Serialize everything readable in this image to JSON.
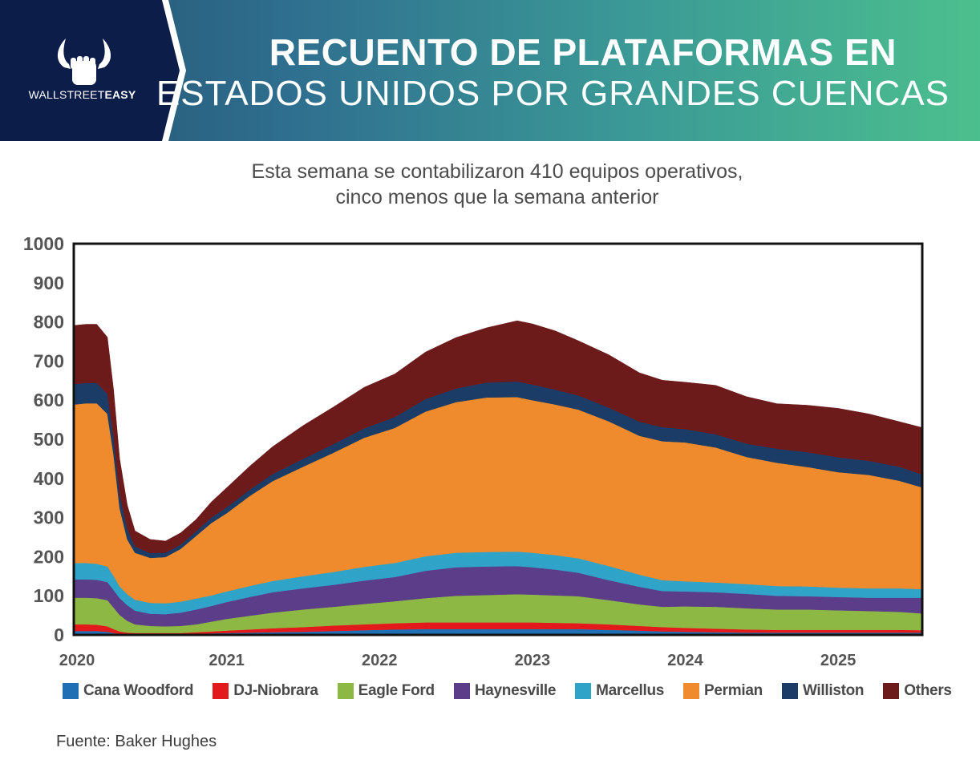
{
  "header": {
    "brand_prefix": "WALLSTREET",
    "brand_suffix": "EASY",
    "title_line1": "RECUENTO DE PLATAFORMAS EN",
    "title_line2": "ESTADOS UNIDOS POR GRANDES CUENCAS",
    "logo_icon": "bull-fist-icon"
  },
  "subtitle_line1": "Esta semana se contabilizaron 410 equipos operativos,",
  "subtitle_line2": "cinco menos que la semana anterior",
  "source": "Fuente: Baker Hughes",
  "chart_data": {
    "type": "area",
    "stacked": true,
    "x": [
      2020.0,
      2020.08,
      2020.15,
      2020.22,
      2020.26,
      2020.3,
      2020.35,
      2020.4,
      2020.5,
      2020.6,
      2020.7,
      2020.8,
      2020.9,
      2021.0,
      2021.15,
      2021.3,
      2021.5,
      2021.7,
      2021.9,
      2022.1,
      2022.3,
      2022.5,
      2022.7,
      2022.9,
      2023.0,
      2023.15,
      2023.3,
      2023.5,
      2023.7,
      2023.85,
      2024.0,
      2024.2,
      2024.4,
      2024.6,
      2024.8,
      2025.0,
      2025.2,
      2025.4,
      2025.55
    ],
    "xlim": [
      2020.0,
      2025.55
    ],
    "xticks": [
      "2020",
      "2021",
      "2022",
      "2023",
      "2024",
      "2025"
    ],
    "ylim": [
      0,
      1000
    ],
    "yticks": [
      "0",
      "100",
      "200",
      "300",
      "400",
      "500",
      "600",
      "700",
      "800",
      "900",
      "1000"
    ],
    "grid": false,
    "legend_position": "bottom",
    "series": [
      {
        "name": "Cana Woodford",
        "color": "#1f6fb4",
        "values": [
          10,
          10,
          10,
          8,
          5,
          3,
          2,
          2,
          2,
          2,
          2,
          3,
          4,
          5,
          6,
          7,
          8,
          10,
          12,
          14,
          15,
          15,
          15,
          15,
          15,
          15,
          15,
          13,
          11,
          9,
          8,
          7,
          6,
          6,
          6,
          6,
          6,
          6,
          6
        ]
      },
      {
        "name": "DJ-Niobrara",
        "color": "#e31a1c",
        "values": [
          17,
          17,
          16,
          14,
          10,
          6,
          4,
          3,
          3,
          3,
          3,
          4,
          5,
          6,
          8,
          10,
          12,
          14,
          15,
          16,
          17,
          17,
          17,
          17,
          17,
          16,
          15,
          14,
          12,
          11,
          10,
          9,
          8,
          7,
          7,
          7,
          7,
          7,
          6
        ]
      },
      {
        "name": "Eagle Ford",
        "color": "#8db843",
        "values": [
          68,
          68,
          68,
          67,
          55,
          42,
          30,
          22,
          18,
          17,
          18,
          20,
          25,
          30,
          35,
          40,
          45,
          48,
          52,
          56,
          62,
          68,
          70,
          72,
          71,
          70,
          69,
          62,
          55,
          52,
          55,
          56,
          54,
          52,
          52,
          50,
          48,
          46,
          43
        ]
      },
      {
        "name": "Haynesville",
        "color": "#5c3d8a",
        "values": [
          47,
          47,
          47,
          46,
          45,
          43,
          40,
          35,
          31,
          31,
          34,
          38,
          40,
          43,
          48,
          52,
          54,
          56,
          60,
          62,
          70,
          73,
          73,
          72,
          70,
          66,
          60,
          51,
          45,
          40,
          38,
          37,
          37,
          35,
          34,
          34,
          34,
          36,
          40
        ]
      },
      {
        "name": "Marcellus",
        "color": "#2fa3c8",
        "values": [
          42,
          42,
          41,
          40,
          36,
          30,
          28,
          28,
          28,
          28,
          28,
          28,
          27,
          27,
          28,
          29,
          31,
          33,
          35,
          36,
          37,
          37,
          37,
          37,
          37,
          37,
          37,
          36,
          31,
          28,
          26,
          25,
          25,
          25,
          25,
          24,
          24,
          24,
          22
        ]
      },
      {
        "name": "Permian",
        "color": "#ef8b2c",
        "values": [
          405,
          408,
          410,
          390,
          310,
          200,
          140,
          120,
          115,
          118,
          135,
          160,
          185,
          200,
          230,
          255,
          280,
          305,
          330,
          345,
          370,
          385,
          395,
          395,
          390,
          385,
          380,
          370,
          355,
          355,
          355,
          345,
          325,
          315,
          305,
          295,
          290,
          275,
          260
        ]
      },
      {
        "name": "Williston",
        "color": "#1a3c66",
        "values": [
          52,
          52,
          52,
          51,
          46,
          36,
          28,
          16,
          12,
          11,
          11,
          12,
          14,
          15,
          16,
          18,
          20,
          22,
          24,
          28,
          32,
          35,
          38,
          40,
          40,
          38,
          36,
          35,
          36,
          36,
          34,
          34,
          34,
          36,
          38,
          38,
          36,
          36,
          33
        ]
      },
      {
        "name": "Others",
        "color": "#6d1a1b",
        "values": [
          150,
          150,
          150,
          145,
          120,
          90,
          60,
          40,
          35,
          30,
          30,
          30,
          40,
          50,
          60,
          70,
          85,
          95,
          105,
          110,
          120,
          130,
          140,
          155,
          155,
          150,
          140,
          135,
          125,
          120,
          120,
          125,
          120,
          115,
          120,
          125,
          120,
          115,
          120
        ]
      }
    ]
  }
}
